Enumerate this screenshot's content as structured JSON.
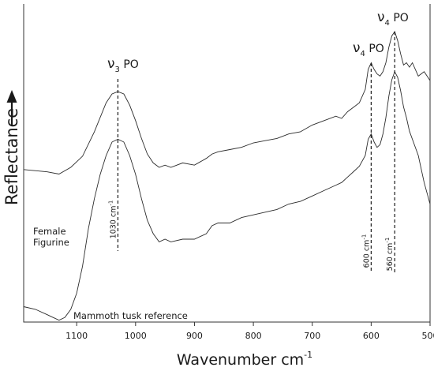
{
  "chart_data": {
    "type": "line",
    "xlabel": "Wavenumber cm",
    "xlabel_sup": "-1",
    "ylabel": "Reflectance",
    "x_reversed": true,
    "xlim": [
      1190,
      500
    ],
    "ylim": [
      0,
      1
    ],
    "ticks": [
      {
        "value": 1100,
        "label": "1100"
      },
      {
        "value": 1000,
        "label": "1000"
      },
      {
        "value": 900,
        "label": "900"
      },
      {
        "value": 800,
        "label": "800"
      },
      {
        "value": 700,
        "label": "700"
      },
      {
        "value": 600,
        "label": "600"
      },
      {
        "value": 500,
        "label": "500"
      }
    ],
    "y_ticks_shown": false,
    "series": [
      {
        "name": "Female Figurine",
        "x": [
          1190,
          1150,
          1130,
          1110,
          1090,
          1070,
          1050,
          1040,
          1030,
          1020,
          1010,
          1000,
          990,
          980,
          970,
          960,
          950,
          940,
          920,
          900,
          880,
          870,
          860,
          840,
          820,
          800,
          780,
          760,
          740,
          720,
          700,
          680,
          660,
          650,
          640,
          630,
          620,
          610,
          605,
          600,
          595,
          590,
          585,
          580,
          575,
          570,
          565,
          560,
          555,
          550,
          545,
          540,
          535,
          530,
          520,
          510,
          500
        ],
        "y": [
          0.38,
          0.37,
          0.36,
          0.39,
          0.44,
          0.55,
          0.68,
          0.72,
          0.73,
          0.72,
          0.67,
          0.6,
          0.52,
          0.45,
          0.41,
          0.39,
          0.4,
          0.39,
          0.41,
          0.4,
          0.43,
          0.45,
          0.46,
          0.47,
          0.48,
          0.5,
          0.51,
          0.52,
          0.54,
          0.55,
          0.58,
          0.6,
          0.62,
          0.61,
          0.64,
          0.66,
          0.68,
          0.74,
          0.83,
          0.86,
          0.83,
          0.81,
          0.8,
          0.82,
          0.86,
          0.93,
          0.98,
          1.0,
          0.96,
          0.9,
          0.85,
          0.86,
          0.84,
          0.86,
          0.8,
          0.82,
          0.78
        ]
      },
      {
        "name": "Mammoth tusk reference",
        "x": [
          1190,
          1170,
          1150,
          1140,
          1130,
          1120,
          1110,
          1100,
          1090,
          1080,
          1070,
          1060,
          1050,
          1040,
          1030,
          1020,
          1010,
          1000,
          990,
          980,
          970,
          960,
          950,
          940,
          920,
          900,
          880,
          870,
          860,
          840,
          820,
          800,
          780,
          760,
          740,
          720,
          700,
          680,
          660,
          650,
          640,
          630,
          620,
          610,
          605,
          600,
          595,
          590,
          585,
          580,
          575,
          570,
          565,
          560,
          555,
          550,
          545,
          540,
          535,
          530,
          520,
          510,
          500
        ],
        "y": [
          0.06,
          0.05,
          0.03,
          0.02,
          0.01,
          0.02,
          0.05,
          0.11,
          0.21,
          0.35,
          0.46,
          0.55,
          0.62,
          0.67,
          0.68,
          0.67,
          0.62,
          0.55,
          0.46,
          0.38,
          0.33,
          0.3,
          0.31,
          0.3,
          0.31,
          0.31,
          0.33,
          0.36,
          0.37,
          0.37,
          0.39,
          0.4,
          0.41,
          0.42,
          0.44,
          0.45,
          0.47,
          0.49,
          0.51,
          0.52,
          0.54,
          0.56,
          0.58,
          0.62,
          0.68,
          0.7,
          0.67,
          0.65,
          0.66,
          0.7,
          0.76,
          0.84,
          0.9,
          0.93,
          0.91,
          0.86,
          0.8,
          0.76,
          0.71,
          0.68,
          0.62,
          0.52,
          0.44
        ]
      }
    ],
    "annotations": [
      {
        "x": 1030,
        "band": "ν",
        "sub": "3",
        "group": "PO",
        "value": "1030 cm",
        "value_sup": "-1"
      },
      {
        "x": 600,
        "band": "ν",
        "sub": "4",
        "group": "PO",
        "value": "600 cm",
        "value_sup": "-1"
      },
      {
        "x": 560,
        "band": "ν",
        "sub": "4",
        "group": "PO",
        "value": "560 cm",
        "value_sup": "-1"
      }
    ]
  }
}
